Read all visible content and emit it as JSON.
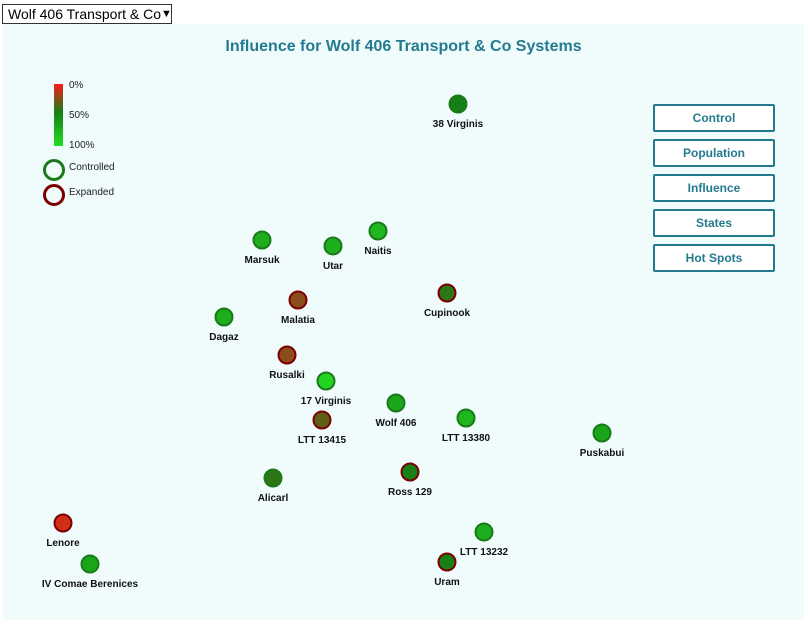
{
  "selector": {
    "value": "Wolf 406 Transport & Co",
    "caret": "▼"
  },
  "title": "Influence for Wolf 406 Transport & Co Systems",
  "legend": {
    "scale_labels": [
      "0%",
      "50%",
      "100%"
    ],
    "controlled_label": "Controlled",
    "expanded_label": "Expanded",
    "controlled_color": "#1a7a1a",
    "expanded_color": "#7a0000"
  },
  "buttons": [
    "Control",
    "Population",
    "Influence",
    "States",
    "Hot Spots"
  ],
  "colors": {
    "accent": "#247a8f",
    "panel_background": "#f0fcfc",
    "scale_low": "#ff1a1a",
    "scale_mid": "#177f17",
    "scale_high": "#22dd22"
  },
  "systems": [
    {
      "name": "38 Virginis",
      "influence": 50,
      "status": "controlled"
    },
    {
      "name": "Marsuk",
      "influence": 75,
      "status": "controlled"
    },
    {
      "name": "Utar",
      "influence": 75,
      "status": "controlled"
    },
    {
      "name": "Naitis",
      "influence": 80,
      "status": "controlled"
    },
    {
      "name": "Malatia",
      "influence": 25,
      "status": "expanded"
    },
    {
      "name": "Cupinook",
      "influence": 45,
      "status": "expanded"
    },
    {
      "name": "Dagaz",
      "influence": 75,
      "status": "controlled"
    },
    {
      "name": "Rusalki",
      "influence": 25,
      "status": "expanded"
    },
    {
      "name": "17 Virginis",
      "influence": 95,
      "status": "controlled"
    },
    {
      "name": "Wolf 406",
      "influence": 70,
      "status": "controlled"
    },
    {
      "name": "LTT 13415",
      "influence": 35,
      "status": "expanded"
    },
    {
      "name": "LTT 13380",
      "influence": 80,
      "status": "controlled"
    },
    {
      "name": "Puskabui",
      "influence": 70,
      "status": "controlled"
    },
    {
      "name": "Alicarl",
      "influence": 45,
      "status": "controlled"
    },
    {
      "name": "Ross 129",
      "influence": 50,
      "status": "expanded"
    },
    {
      "name": "Lenore",
      "influence": 10,
      "status": "expanded"
    },
    {
      "name": "LTT 13232",
      "influence": 75,
      "status": "controlled"
    },
    {
      "name": "IV Comae Berenices",
      "influence": 70,
      "status": "controlled"
    },
    {
      "name": "Uram",
      "influence": 50,
      "status": "expanded"
    }
  ]
}
